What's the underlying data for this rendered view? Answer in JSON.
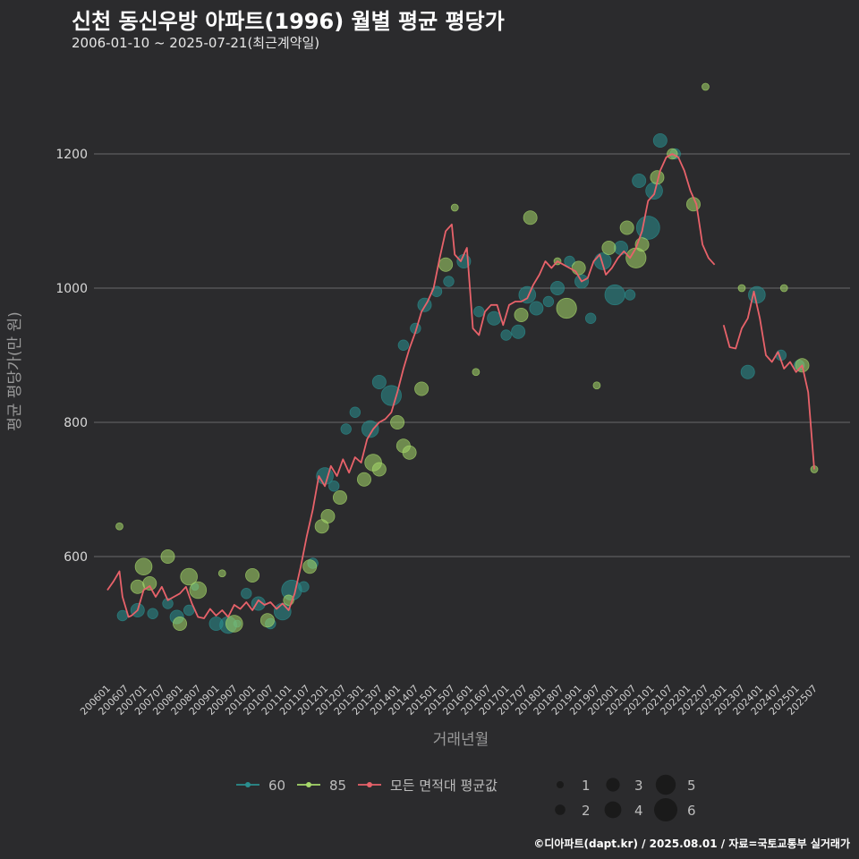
{
  "header": {
    "title": "신천 동신우방 아파트(1996) 월별 평균 평당가",
    "subtitle": "2006-01-10 ~ 2025-07-21(최근계약일)"
  },
  "caption": "©디아파트(dapt.kr) / 2025.08.01 / 자료=국토교통부 실거래가",
  "colors": {
    "background": "#2b2b2d",
    "grid": "#6a6a6a",
    "series_60": "#2a8f8f",
    "series_85": "#a6d96a",
    "average_line": "#e8626a"
  },
  "chart_data": {
    "type": "line",
    "xlabel": "거래년월",
    "ylabel": "평균 평당가(만 원)",
    "x_range": [
      "2006-01",
      "2025-07"
    ],
    "ylim": [
      420,
      1320
    ],
    "y_ticks": [
      600,
      800,
      1000,
      1200
    ],
    "x_ticks": [
      "200601",
      "200607",
      "200701",
      "200707",
      "200801",
      "200807",
      "200901",
      "200907",
      "201001",
      "201007",
      "201101",
      "201107",
      "201201",
      "201207",
      "201301",
      "201307",
      "201401",
      "201407",
      "201501",
      "201507",
      "201601",
      "201607",
      "201701",
      "201707",
      "201801",
      "201807",
      "201901",
      "201907",
      "202001",
      "202007",
      "202101",
      "202107",
      "202201",
      "202207",
      "202301",
      "202307",
      "202401",
      "202407",
      "202501",
      "202507"
    ],
    "grid": "horizontal",
    "legend_position": "bottom",
    "legend": {
      "series": [
        "60",
        "85",
        "모든 면적대 평균값"
      ],
      "size_title": "",
      "sizes": [
        1,
        2,
        3,
        4,
        5,
        6
      ]
    },
    "average_line": {
      "name": "모든 면적대 평균값",
      "segments": [
        {
          "x": [
            "2006-01",
            "2006-03",
            "2006-05",
            "2006-06",
            "2006-08",
            "2006-09",
            "2006-11",
            "2007-01",
            "2007-03",
            "2007-05",
            "2007-07",
            "2007-09",
            "2007-11",
            "2008-01",
            "2008-03",
            "2008-05",
            "2008-07",
            "2008-09",
            "2008-11",
            "2009-01",
            "2009-03",
            "2009-05",
            "2009-07",
            "2009-09",
            "2009-11",
            "2010-01",
            "2010-03",
            "2010-05",
            "2010-07",
            "2010-09",
            "2010-11",
            "2011-01",
            "2011-03",
            "2011-05",
            "2011-07",
            "2011-09",
            "2011-11",
            "2012-01",
            "2012-03",
            "2012-05",
            "2012-07",
            "2012-09",
            "2012-11",
            "2013-01",
            "2013-03",
            "2013-05",
            "2013-07",
            "2013-09",
            "2013-11",
            "2014-01",
            "2014-03",
            "2014-05",
            "2014-07",
            "2014-09",
            "2014-11",
            "2015-01",
            "2015-03",
            "2015-05",
            "2015-07",
            "2015-08",
            "2015-10",
            "2015-12",
            "2016-02",
            "2016-04",
            "2016-06",
            "2016-08",
            "2016-10",
            "2016-12",
            "2017-02",
            "2017-04",
            "2017-06",
            "2017-08",
            "2017-10",
            "2017-12",
            "2018-02",
            "2018-04",
            "2018-06",
            "2018-08",
            "2018-10",
            "2018-12",
            "2019-02",
            "2019-04",
            "2019-06",
            "2019-08",
            "2019-10",
            "2019-12",
            "2020-02",
            "2020-04",
            "2020-06",
            "2020-08",
            "2020-10",
            "2020-12",
            "2021-02",
            "2021-04",
            "2021-06",
            "2021-08",
            "2021-10",
            "2021-12",
            "2022-02",
            "2022-04",
            "2022-06",
            "2022-08",
            "2022-10"
          ],
          "y": [
            550,
            563,
            578,
            540,
            510,
            512,
            520,
            550,
            556,
            540,
            555,
            535,
            540,
            545,
            555,
            530,
            510,
            508,
            522,
            512,
            520,
            510,
            528,
            522,
            532,
            520,
            535,
            528,
            532,
            522,
            530,
            520,
            545,
            585,
            630,
            670,
            720,
            705,
            735,
            720,
            745,
            725,
            748,
            740,
            775,
            790,
            800,
            805,
            815,
            845,
            880,
            910,
            935,
            965,
            980,
            1000,
            1045,
            1085,
            1095,
            1050,
            1040,
            1060,
            940,
            930,
            965,
            975,
            975,
            945,
            975,
            980,
            980,
            985,
            1005,
            1020,
            1040,
            1030,
            1040,
            1035,
            1030,
            1025,
            1010,
            1015,
            1040,
            1050,
            1020,
            1030,
            1045,
            1055,
            1045,
            1060,
            1085,
            1130,
            1140,
            1175,
            1195,
            1200,
            1195,
            1175,
            1145,
            1125,
            1065,
            1045,
            1035
          ]
        },
        {
          "x": [
            "2023-01",
            "2023-03",
            "2023-05",
            "2023-07",
            "2023-09",
            "2023-11",
            "2024-01",
            "2024-03",
            "2024-05",
            "2024-07",
            "2024-09",
            "2024-11",
            "2025-01",
            "2025-03",
            "2025-05",
            "2025-07"
          ],
          "y": [
            945,
            912,
            910,
            940,
            955,
            995,
            955,
            900,
            890,
            905,
            880,
            890,
            875,
            885,
            845,
            730
          ]
        }
      ]
    },
    "series": [
      {
        "name": "60",
        "points": [
          {
            "x": "2006-06",
            "y": 512,
            "size": 2
          },
          {
            "x": "2006-11",
            "y": 520,
            "size": 3
          },
          {
            "x": "2007-04",
            "y": 515,
            "size": 2
          },
          {
            "x": "2007-09",
            "y": 530,
            "size": 2
          },
          {
            "x": "2007-12",
            "y": 510,
            "size": 3
          },
          {
            "x": "2008-04",
            "y": 520,
            "size": 2
          },
          {
            "x": "2008-06",
            "y": 555,
            "size": 1
          },
          {
            "x": "2009-01",
            "y": 500,
            "size": 3
          },
          {
            "x": "2009-05",
            "y": 498,
            "size": 4
          },
          {
            "x": "2009-08",
            "y": 500,
            "size": 1
          },
          {
            "x": "2009-11",
            "y": 545,
            "size": 2
          },
          {
            "x": "2010-03",
            "y": 530,
            "size": 3
          },
          {
            "x": "2010-07",
            "y": 500,
            "size": 2
          },
          {
            "x": "2010-11",
            "y": 518,
            "size": 4
          },
          {
            "x": "2011-02",
            "y": 550,
            "size": 5
          },
          {
            "x": "2011-06",
            "y": 555,
            "size": 2
          },
          {
            "x": "2011-09",
            "y": 590,
            "size": 2
          },
          {
            "x": "2012-01",
            "y": 720,
            "size": 4
          },
          {
            "x": "2012-04",
            "y": 705,
            "size": 2
          },
          {
            "x": "2012-08",
            "y": 790,
            "size": 2
          },
          {
            "x": "2012-11",
            "y": 815,
            "size": 2
          },
          {
            "x": "2013-04",
            "y": 790,
            "size": 4
          },
          {
            "x": "2013-07",
            "y": 860,
            "size": 3
          },
          {
            "x": "2013-11",
            "y": 840,
            "size": 5
          },
          {
            "x": "2014-03",
            "y": 915,
            "size": 2
          },
          {
            "x": "2014-07",
            "y": 940,
            "size": 2
          },
          {
            "x": "2014-10",
            "y": 975,
            "size": 3
          },
          {
            "x": "2015-02",
            "y": 995,
            "size": 2
          },
          {
            "x": "2015-06",
            "y": 1010,
            "size": 2
          },
          {
            "x": "2015-11",
            "y": 1040,
            "size": 3
          },
          {
            "x": "2016-04",
            "y": 965,
            "size": 2
          },
          {
            "x": "2016-09",
            "y": 955,
            "size": 3
          },
          {
            "x": "2017-01",
            "y": 930,
            "size": 2
          },
          {
            "x": "2017-05",
            "y": 935,
            "size": 3
          },
          {
            "x": "2017-08",
            "y": 990,
            "size": 4
          },
          {
            "x": "2017-11",
            "y": 970,
            "size": 3
          },
          {
            "x": "2018-03",
            "y": 980,
            "size": 2
          },
          {
            "x": "2018-06",
            "y": 1000,
            "size": 3
          },
          {
            "x": "2018-10",
            "y": 1040,
            "size": 2
          },
          {
            "x": "2019-02",
            "y": 1010,
            "size": 3
          },
          {
            "x": "2019-05",
            "y": 955,
            "size": 2
          },
          {
            "x": "2019-09",
            "y": 1040,
            "size": 4
          },
          {
            "x": "2020-01",
            "y": 990,
            "size": 5
          },
          {
            "x": "2020-03",
            "y": 1060,
            "size": 3
          },
          {
            "x": "2020-06",
            "y": 990,
            "size": 2
          },
          {
            "x": "2020-09",
            "y": 1160,
            "size": 3
          },
          {
            "x": "2020-12",
            "y": 1090,
            "size": 6
          },
          {
            "x": "2021-02",
            "y": 1145,
            "size": 4
          },
          {
            "x": "2021-04",
            "y": 1220,
            "size": 3
          },
          {
            "x": "2021-09",
            "y": 1200,
            "size": 2
          },
          {
            "x": "2023-09",
            "y": 875,
            "size": 3
          },
          {
            "x": "2023-12",
            "y": 990,
            "size": 4
          },
          {
            "x": "2024-08",
            "y": 900,
            "size": 2
          },
          {
            "x": "2025-02",
            "y": 885,
            "size": 2
          }
        ]
      },
      {
        "name": "85",
        "points": [
          {
            "x": "2006-05",
            "y": 645,
            "size": 1
          },
          {
            "x": "2006-11",
            "y": 555,
            "size": 3
          },
          {
            "x": "2007-01",
            "y": 585,
            "size": 4
          },
          {
            "x": "2007-03",
            "y": 560,
            "size": 3
          },
          {
            "x": "2007-09",
            "y": 600,
            "size": 3
          },
          {
            "x": "2008-01",
            "y": 500,
            "size": 3
          },
          {
            "x": "2008-04",
            "y": 570,
            "size": 4
          },
          {
            "x": "2008-07",
            "y": 550,
            "size": 4
          },
          {
            "x": "2009-03",
            "y": 575,
            "size": 1
          },
          {
            "x": "2009-07",
            "y": 500,
            "size": 4
          },
          {
            "x": "2010-01",
            "y": 572,
            "size": 3
          },
          {
            "x": "2010-06",
            "y": 505,
            "size": 3
          },
          {
            "x": "2011-01",
            "y": 535,
            "size": 2
          },
          {
            "x": "2011-08",
            "y": 585,
            "size": 3
          },
          {
            "x": "2011-12",
            "y": 645,
            "size": 3
          },
          {
            "x": "2012-02",
            "y": 660,
            "size": 3
          },
          {
            "x": "2012-06",
            "y": 688,
            "size": 3
          },
          {
            "x": "2013-02",
            "y": 715,
            "size": 3
          },
          {
            "x": "2013-05",
            "y": 740,
            "size": 4
          },
          {
            "x": "2013-07",
            "y": 730,
            "size": 3
          },
          {
            "x": "2014-01",
            "y": 800,
            "size": 3
          },
          {
            "x": "2014-03",
            "y": 765,
            "size": 3
          },
          {
            "x": "2014-05",
            "y": 755,
            "size": 3
          },
          {
            "x": "2014-09",
            "y": 850,
            "size": 3
          },
          {
            "x": "2015-05",
            "y": 1035,
            "size": 3
          },
          {
            "x": "2015-08",
            "y": 1120,
            "size": 1
          },
          {
            "x": "2016-03",
            "y": 875,
            "size": 1
          },
          {
            "x": "2017-06",
            "y": 960,
            "size": 3
          },
          {
            "x": "2017-09",
            "y": 1105,
            "size": 3
          },
          {
            "x": "2018-06",
            "y": 1040,
            "size": 1
          },
          {
            "x": "2018-09",
            "y": 970,
            "size": 5
          },
          {
            "x": "2019-01",
            "y": 1030,
            "size": 3
          },
          {
            "x": "2019-07",
            "y": 855,
            "size": 1
          },
          {
            "x": "2019-11",
            "y": 1060,
            "size": 3
          },
          {
            "x": "2020-05",
            "y": 1090,
            "size": 3
          },
          {
            "x": "2020-08",
            "y": 1045,
            "size": 5
          },
          {
            "x": "2020-10",
            "y": 1065,
            "size": 3
          },
          {
            "x": "2021-03",
            "y": 1165,
            "size": 3
          },
          {
            "x": "2021-08",
            "y": 1200,
            "size": 2
          },
          {
            "x": "2022-03",
            "y": 1125,
            "size": 3
          },
          {
            "x": "2022-07",
            "y": 1300,
            "size": 1
          },
          {
            "x": "2023-07",
            "y": 1000,
            "size": 1
          },
          {
            "x": "2024-09",
            "y": 1000,
            "size": 1
          },
          {
            "x": "2025-03",
            "y": 885,
            "size": 3
          },
          {
            "x": "2025-07",
            "y": 730,
            "size": 1
          }
        ]
      }
    ]
  }
}
